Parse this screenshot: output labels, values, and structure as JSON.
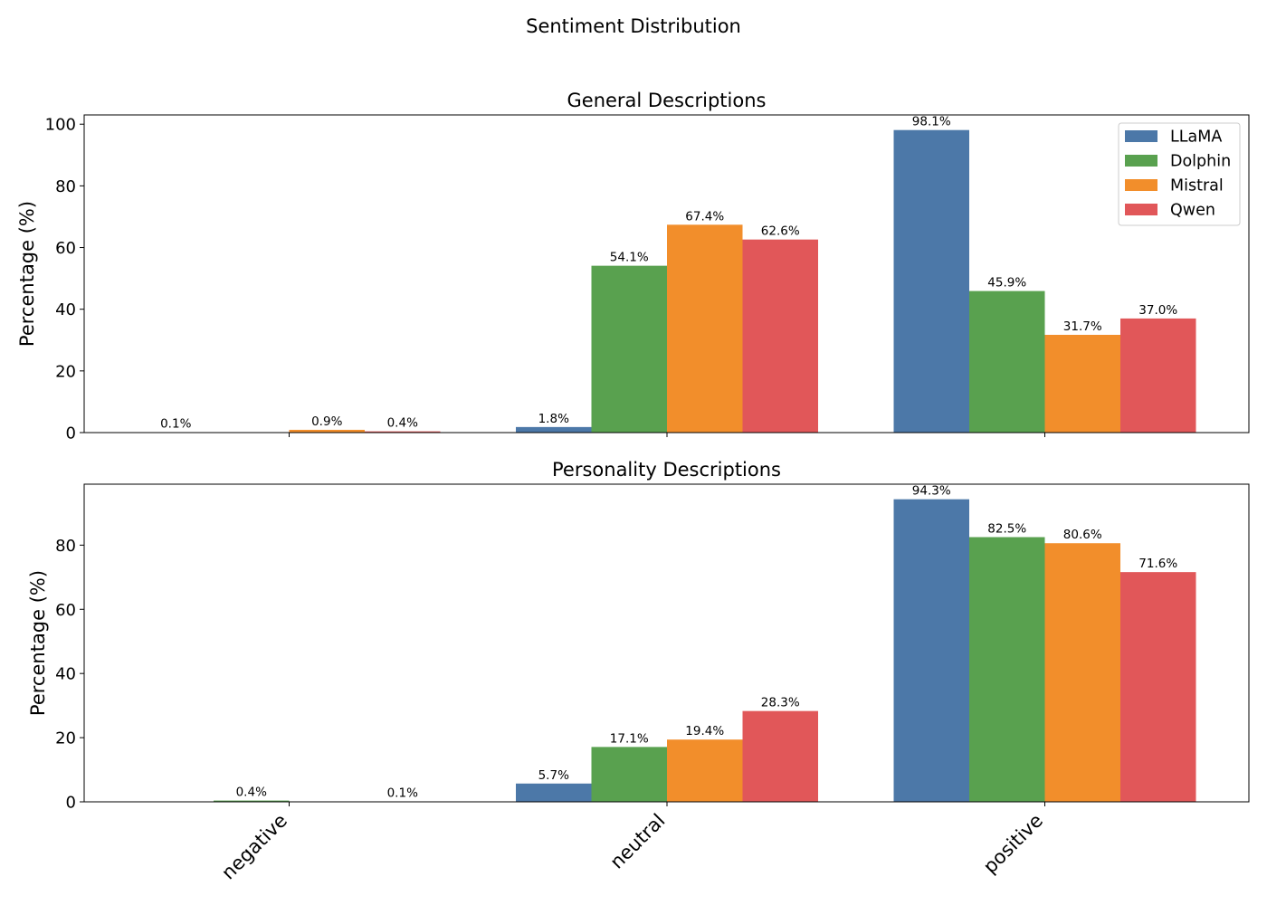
{
  "suptitle": "Sentiment Distribution",
  "colors": {
    "LLaMA": "#4c78a8",
    "Dolphin": "#59a14f",
    "Mistral": "#f28e2b",
    "Qwen": "#e15759"
  },
  "chart_data": [
    {
      "type": "bar",
      "title": "General Descriptions",
      "xlabel": "",
      "ylabel": "Percentage (%)",
      "categories": [
        "negative",
        "neutral",
        "positive"
      ],
      "ylim": [
        0,
        103
      ],
      "yticks": [
        0,
        20,
        40,
        60,
        80,
        100
      ],
      "legend": "top-right",
      "series": [
        {
          "name": "LLaMA",
          "values": [
            0.1,
            1.8,
            98.1
          ],
          "labels": [
            "0.1%",
            "1.8%",
            "98.1%"
          ]
        },
        {
          "name": "Dolphin",
          "values": [
            0.0,
            54.1,
            45.9
          ],
          "labels": [
            "",
            "54.1%",
            "45.9%"
          ]
        },
        {
          "name": "Mistral",
          "values": [
            0.9,
            67.4,
            31.7
          ],
          "labels": [
            "0.9%",
            "67.4%",
            "31.7%"
          ]
        },
        {
          "name": "Qwen",
          "values": [
            0.4,
            62.6,
            37.0
          ],
          "labels": [
            "0.4%",
            "62.6%",
            "37.0%"
          ]
        }
      ]
    },
    {
      "type": "bar",
      "title": "Personality Descriptions",
      "xlabel": "",
      "ylabel": "Percentage (%)",
      "categories": [
        "negative",
        "neutral",
        "positive"
      ],
      "ylim": [
        0,
        99
      ],
      "yticks": [
        0,
        20,
        40,
        60,
        80
      ],
      "series": [
        {
          "name": "LLaMA",
          "values": [
            0.0,
            5.7,
            94.3
          ],
          "labels": [
            "",
            "5.7%",
            "94.3%"
          ]
        },
        {
          "name": "Dolphin",
          "values": [
            0.4,
            17.1,
            82.5
          ],
          "labels": [
            "0.4%",
            "17.1%",
            "82.5%"
          ]
        },
        {
          "name": "Mistral",
          "values": [
            0.0,
            19.4,
            80.6
          ],
          "labels": [
            "",
            "19.4%",
            "80.6%"
          ]
        },
        {
          "name": "Qwen",
          "values": [
            0.1,
            28.3,
            71.6
          ],
          "labels": [
            "0.1%",
            "28.3%",
            "71.6%"
          ]
        }
      ]
    }
  ]
}
